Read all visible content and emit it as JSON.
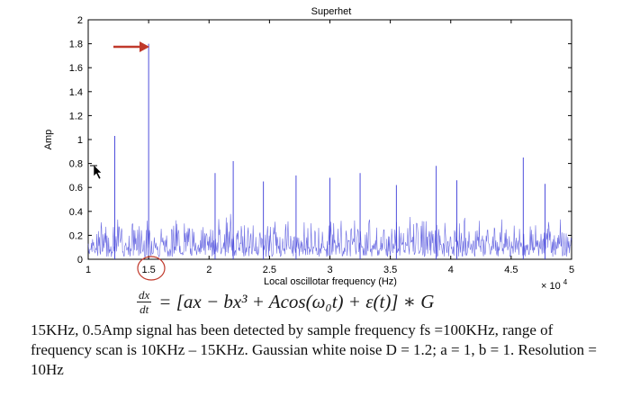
{
  "chart_data": {
    "type": "line",
    "title": "Superhet",
    "xlabel": "Local oscillotar frequency (Hz)",
    "ylabel": "Amp",
    "x_multiplier": "× 10",
    "x_multiplier_exp": "4",
    "xlim": [
      1,
      5
    ],
    "ylim": [
      0,
      2
    ],
    "xticks": [
      1,
      1.5,
      2,
      2.5,
      3,
      3.5,
      4,
      4.5,
      5
    ],
    "xtick_labels": [
      "1",
      "1.5",
      "2",
      "2.5",
      "3",
      "3.5",
      "4",
      "4.5",
      "5"
    ],
    "yticks": [
      0,
      0.2,
      0.4,
      0.6,
      0.8,
      1,
      1.2,
      1.4,
      1.6,
      1.8,
      2
    ],
    "ytick_labels": [
      "0",
      "0.2",
      "0.4",
      "0.6",
      "0.8",
      "1",
      "1.2",
      "1.4",
      "1.6",
      "1.8",
      "2"
    ],
    "series_color": "#3a3ad8",
    "noise_floor_approx": 0.3,
    "peaks": [
      {
        "x": 1.22,
        "y": 1.03
      },
      {
        "x": 1.5,
        "y": 1.8
      },
      {
        "x": 2.05,
        "y": 0.72
      },
      {
        "x": 2.2,
        "y": 0.82
      },
      {
        "x": 2.45,
        "y": 0.65
      },
      {
        "x": 2.72,
        "y": 0.7
      },
      {
        "x": 3.0,
        "y": 0.68
      },
      {
        "x": 3.25,
        "y": 0.72
      },
      {
        "x": 3.55,
        "y": 0.62
      },
      {
        "x": 3.88,
        "y": 0.78
      },
      {
        "x": 4.05,
        "y": 0.66
      },
      {
        "x": 4.6,
        "y": 0.85
      },
      {
        "x": 4.78,
        "y": 0.63
      }
    ],
    "annotations": {
      "arrow_color": "#c0392b",
      "highlight_circle_color": "#c0392b",
      "highlight_x_tick": "1.5"
    }
  },
  "equation": {
    "frac_num": "dx",
    "frac_den": "dt",
    "rhs": "= [ax − bx³ + Acos(ω₀t) + ε(t)] ∗ G"
  },
  "caption": {
    "text": "15KHz, 0.5Amp signal has been detected by sample frequency fs =100KHz, range of frequency scan is 10KHz – 15KHz.   Gaussian white noise D = 1.2; a = 1, b = 1. Resolution = 10Hz"
  }
}
